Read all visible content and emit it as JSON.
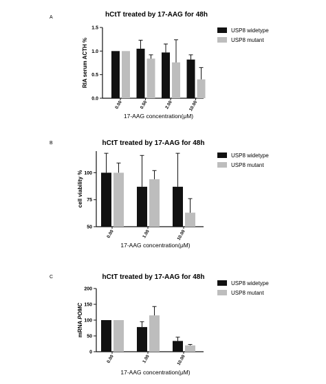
{
  "colors": {
    "widetype": "#111111",
    "mutant": "#bdbdbd",
    "axis": "#111111"
  },
  "chart_data": [
    {
      "type": "bar",
      "panel": "A",
      "title": "hCtT treated by 17-AAG for 48h",
      "xlabel": "17-AAG concentration(μM)",
      "ylabel": "RIA serum ACTH %",
      "ylim": [
        0,
        1.5
      ],
      "yticks": [
        "0.0",
        "0.5",
        "1.0",
        "1.5"
      ],
      "tick_values": [
        0,
        0.5,
        1.0,
        1.5
      ],
      "categories": [
        "0.00",
        "0.50",
        "2.00",
        "10.00"
      ],
      "series": [
        {
          "name": "USP8 widetype",
          "values": [
            1.0,
            1.05,
            0.97,
            0.82
          ],
          "errors": [
            0,
            0.18,
            0.18,
            0.1
          ]
        },
        {
          "name": "USP8 mutant",
          "values": [
            1.0,
            0.84,
            0.76,
            0.4
          ],
          "errors": [
            0,
            0.08,
            0.48,
            0.25
          ]
        }
      ],
      "legend": "top-right",
      "grid": false
    },
    {
      "type": "bar",
      "panel": "B",
      "title": "hCtT treated by 17-AAG for 48h",
      "xlabel": "17-AAG concentration(μM)",
      "ylabel": "cell viability %",
      "ylim": [
        50,
        120
      ],
      "yticks": [
        "50",
        "75",
        "100"
      ],
      "tick_values": [
        50,
        75,
        100
      ],
      "categories": [
        "0.00",
        "1.00",
        "10.00"
      ],
      "series": [
        {
          "name": "USP8 widetype",
          "values": [
            100,
            87,
            87
          ],
          "errors": [
            18,
            29,
            31
          ]
        },
        {
          "name": "USP8 mutant",
          "values": [
            100,
            94,
            63
          ],
          "errors": [
            9,
            8,
            13
          ]
        }
      ],
      "legend": "top-right",
      "grid": false
    },
    {
      "type": "bar",
      "panel": "C",
      "title": "hCtT treated by 17-AAG for 48h",
      "xlabel": "17-AAG concentration(μM)",
      "ylabel_main": "mRNA ",
      "ylabel_italic": "POMC",
      "ylim": [
        0,
        200
      ],
      "yticks": [
        "0",
        "50",
        "100",
        "150",
        "200"
      ],
      "tick_values": [
        0,
        50,
        100,
        150,
        200
      ],
      "categories": [
        "0.00",
        "1.00",
        "10.00"
      ],
      "series": [
        {
          "name": "USP8 widetype",
          "values": [
            100,
            78,
            34
          ],
          "errors": [
            0,
            17,
            12
          ]
        },
        {
          "name": "USP8 mutant",
          "values": [
            100,
            115,
            20
          ],
          "errors": [
            0,
            28,
            3
          ]
        }
      ],
      "legend": "top-right",
      "grid": false
    }
  ]
}
